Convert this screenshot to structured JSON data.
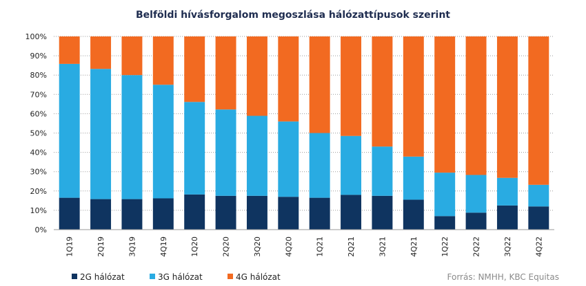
{
  "chart_data": {
    "type": "bar",
    "stacked": true,
    "title": "Belföldi hívásforgalom megoszlása hálózattípusok szerint",
    "categories": [
      "1Q19",
      "2Q19",
      "3Q19",
      "4Q19",
      "1Q20",
      "2Q20",
      "3Q20",
      "4Q20",
      "1Q21",
      "2Q21",
      "3Q21",
      "4Q21",
      "1Q22",
      "2Q22",
      "3Q22",
      "4Q22"
    ],
    "series": [
      {
        "name": "2G hálózat",
        "color": "#0f3460",
        "values": [
          16.5,
          15.8,
          15.8,
          16.2,
          18.2,
          17.5,
          17.5,
          17,
          16.5,
          18,
          17.5,
          15.5,
          7,
          8.8,
          12.5,
          12
        ]
      },
      {
        "name": "3G hálózat",
        "color": "#29abe2",
        "values": [
          69.3,
          67.4,
          64.2,
          58.8,
          47.9,
          44.7,
          41.4,
          39,
          33.5,
          30.5,
          25.5,
          22.3,
          22.5,
          19.5,
          14.3,
          11.2
        ]
      },
      {
        "name": "4G hálózat",
        "color": "#f26a21",
        "values": [
          14.2,
          16.8,
          20,
          25,
          33.9,
          37.8,
          41.1,
          44,
          50,
          51.5,
          57,
          62.2,
          70.5,
          71.7,
          73.2,
          76.8
        ]
      }
    ],
    "ylim": [
      0,
      100
    ],
    "yticks": [
      "0%",
      "10%",
      "20%",
      "30%",
      "40%",
      "50%",
      "60%",
      "70%",
      "80%",
      "90%",
      "100%"
    ],
    "grid": true,
    "legend_position": "bottom-left",
    "source": "Forrás: NMHH, KBC Equitas"
  }
}
